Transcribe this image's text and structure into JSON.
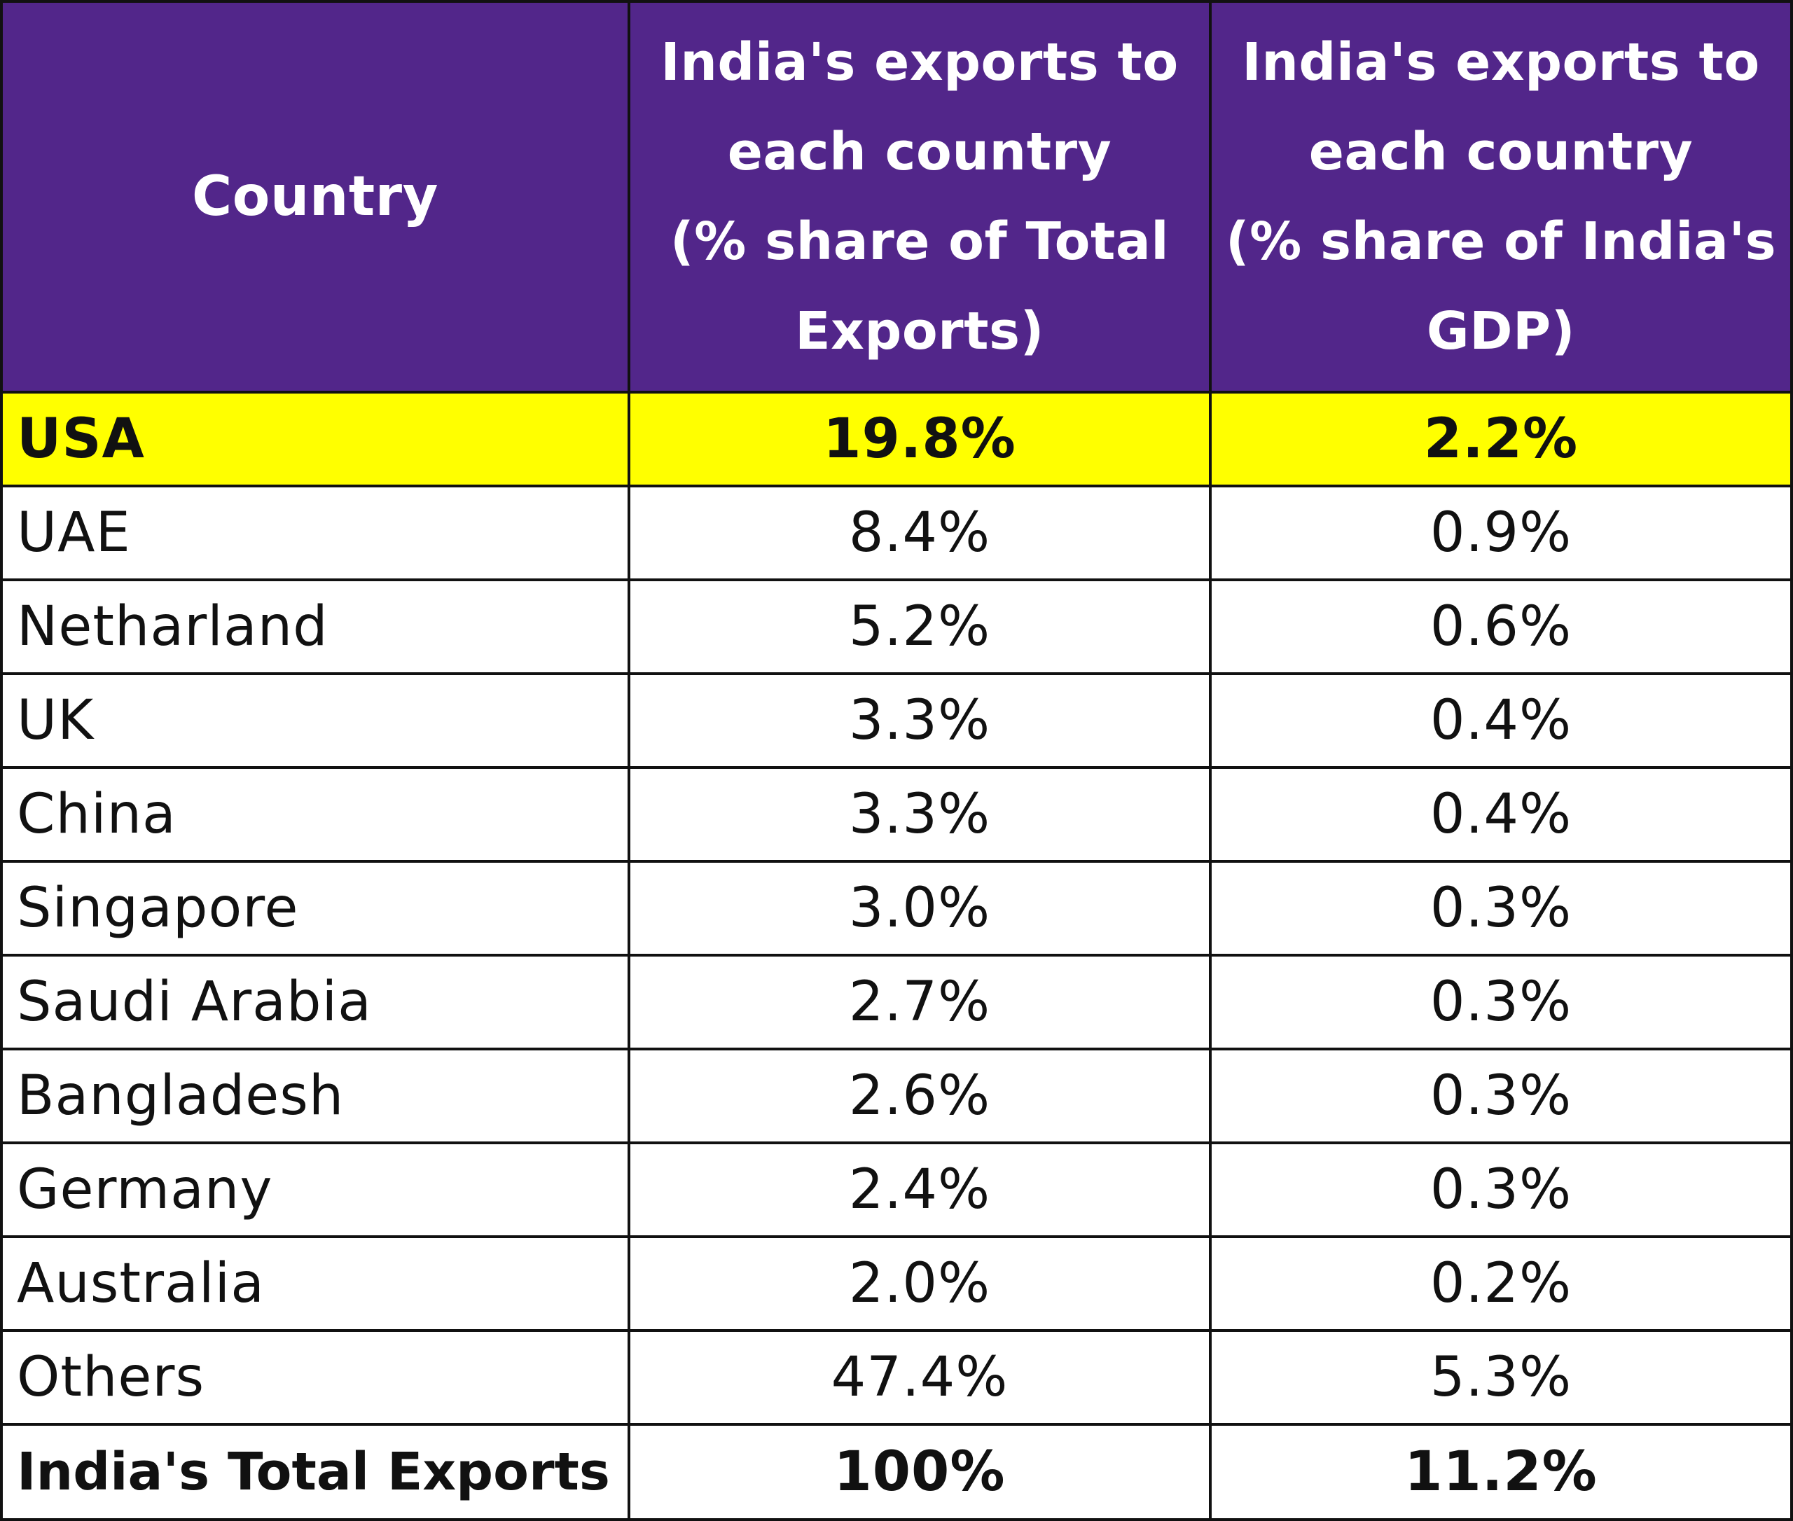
{
  "chart_data": {
    "type": "table",
    "columns": [
      "Country",
      "India's exports to each country (% share of Total Exports)",
      "India's exports to each country (% share of India's GDP)"
    ],
    "header_lines": {
      "col1": [
        "Country"
      ],
      "col2": [
        "India's exports to",
        "each country",
        "(% share of Total",
        "Exports)"
      ],
      "col3": [
        "India's exports to",
        "each country",
        "(% share of India's",
        "GDP)"
      ]
    },
    "rows": [
      {
        "country": "USA",
        "share_of_exports": "19.8%",
        "share_of_gdp": "2.2%"
      },
      {
        "country": "UAE",
        "share_of_exports": "8.4%",
        "share_of_gdp": "0.9%"
      },
      {
        "country": "Netharland",
        "share_of_exports": "5.2%",
        "share_of_gdp": "0.6%"
      },
      {
        "country": "UK",
        "share_of_exports": "3.3%",
        "share_of_gdp": "0.4%"
      },
      {
        "country": "China",
        "share_of_exports": "3.3%",
        "share_of_gdp": "0.4%"
      },
      {
        "country": "Singapore",
        "share_of_exports": "3.0%",
        "share_of_gdp": "0.3%"
      },
      {
        "country": "Saudi Arabia",
        "share_of_exports": "2.7%",
        "share_of_gdp": "0.3%"
      },
      {
        "country": "Bangladesh",
        "share_of_exports": "2.6%",
        "share_of_gdp": "0.3%"
      },
      {
        "country": "Germany",
        "share_of_exports": "2.4%",
        "share_of_gdp": "0.3%"
      },
      {
        "country": "Australia",
        "share_of_exports": "2.0%",
        "share_of_gdp": "0.2%"
      },
      {
        "country": "Others",
        "share_of_exports": "47.4%",
        "share_of_gdp": "5.3%"
      },
      {
        "country": "India's Total Exports",
        "share_of_exports": "100%",
        "share_of_gdp": "11.2%"
      }
    ],
    "highlighted_row": "USA",
    "total_row": "India's Total Exports"
  },
  "colors": {
    "header_background": "#52268a",
    "header_text": "#ffffff",
    "highlight_background": "#ffff00",
    "border": "#111111"
  }
}
